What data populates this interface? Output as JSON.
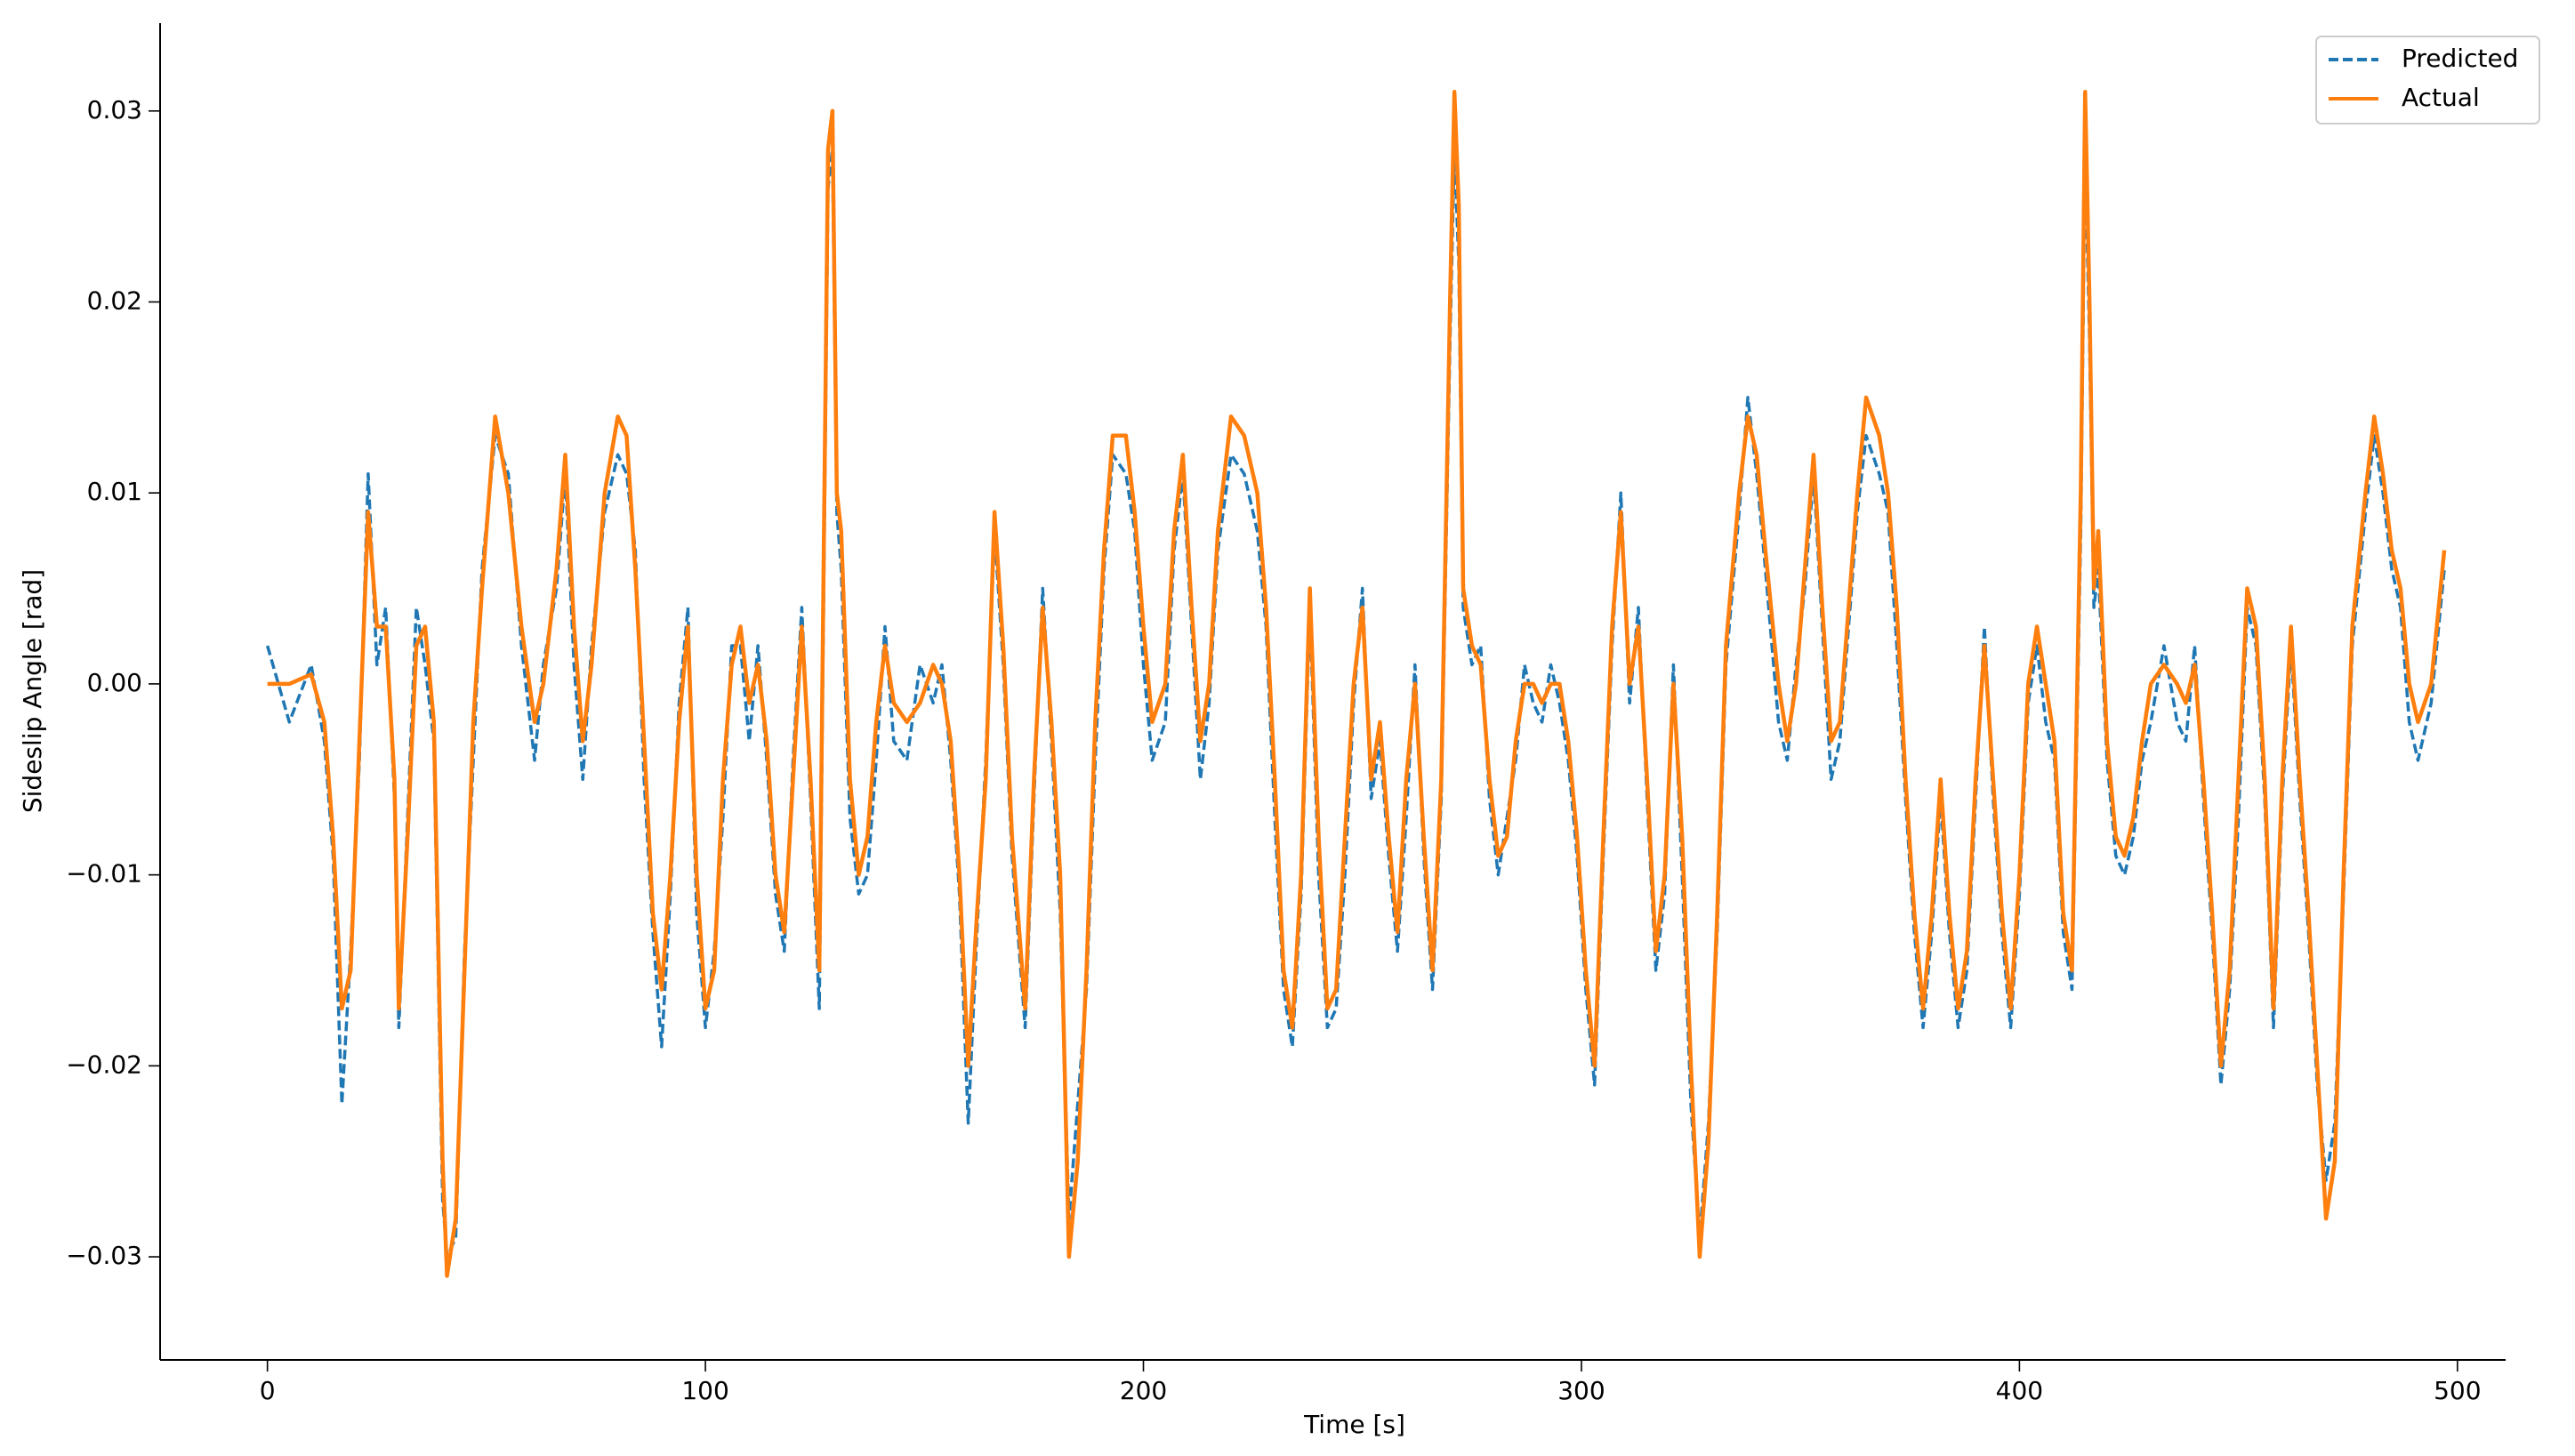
{
  "chart_data": {
    "type": "line",
    "xlabel": "Time [s]",
    "ylabel": "Sideslip Angle [rad]",
    "x": [
      0,
      5,
      10,
      13,
      15,
      17,
      19,
      21,
      23,
      25,
      27,
      29,
      30,
      32,
      34,
      36,
      38,
      40,
      41,
      43,
      45,
      47,
      49,
      52,
      55,
      58,
      61,
      63,
      66,
      68,
      70,
      72,
      74,
      77,
      80,
      82,
      84,
      86,
      88,
      90,
      92,
      94,
      96,
      98,
      100,
      102,
      104,
      106,
      108,
      110,
      112,
      114,
      116,
      118,
      120,
      122,
      124,
      126,
      128,
      129,
      130,
      131,
      133,
      135,
      137,
      139,
      141,
      143,
      146,
      149,
      152,
      154,
      156,
      158,
      160,
      162,
      164,
      166,
      168,
      170,
      173,
      175,
      177,
      179,
      181,
      183,
      185,
      187,
      189,
      191,
      193,
      196,
      198,
      200,
      202,
      205,
      207,
      209,
      211,
      213,
      215,
      217,
      220,
      223,
      226,
      228,
      230,
      232,
      234,
      236,
      238,
      240,
      242,
      244,
      246,
      248,
      250,
      252,
      254,
      256,
      258,
      260,
      262,
      264,
      266,
      268,
      270,
      271,
      272,
      273,
      275,
      277,
      279,
      281,
      283,
      285,
      287,
      289,
      291,
      293,
      295,
      297,
      299,
      301,
      303,
      305,
      307,
      309,
      311,
      313,
      315,
      317,
      319,
      321,
      323,
      325,
      327,
      329,
      331,
      333,
      336,
      338,
      340,
      342,
      345,
      347,
      349,
      351,
      353,
      355,
      357,
      359,
      361,
      363,
      365,
      368,
      370,
      372,
      374,
      376,
      378,
      380,
      382,
      384,
      386,
      388,
      390,
      392,
      394,
      396,
      398,
      400,
      402,
      404,
      406,
      408,
      410,
      412,
      414,
      415,
      416,
      417,
      418,
      420,
      422,
      424,
      426,
      428,
      430,
      433,
      436,
      438,
      440,
      442,
      444,
      446,
      448,
      450,
      452,
      454,
      456,
      458,
      460,
      462,
      464,
      466,
      468,
      470,
      472,
      474,
      476,
      479,
      481,
      483,
      485,
      487,
      489,
      491,
      494,
      497
    ],
    "series": [
      {
        "name": "Predicted",
        "color": "#1f77b4",
        "linestyle": "dashed",
        "values": [
          0.002,
          -0.002,
          0.001,
          -0.003,
          -0.009,
          -0.022,
          -0.014,
          -0.004,
          0.011,
          0.001,
          0.004,
          -0.006,
          -0.018,
          -0.007,
          0.004,
          0.001,
          -0.003,
          -0.027,
          -0.03,
          -0.029,
          -0.014,
          -0.004,
          0.006,
          0.013,
          0.011,
          0.002,
          -0.004,
          0.001,
          0.005,
          0.011,
          0.001,
          -0.005,
          0.002,
          0.009,
          0.012,
          0.011,
          0.007,
          -0.005,
          -0.013,
          -0.019,
          -0.011,
          -0.001,
          0.004,
          -0.012,
          -0.018,
          -0.014,
          -0.007,
          0.002,
          0.002,
          -0.003,
          0.002,
          -0.004,
          -0.011,
          -0.014,
          -0.004,
          0.004,
          -0.006,
          -0.017,
          0.026,
          0.028,
          0.009,
          0.006,
          -0.007,
          -0.011,
          -0.01,
          -0.004,
          0.003,
          -0.003,
          -0.004,
          0.001,
          -0.001,
          0.001,
          -0.004,
          -0.011,
          -0.023,
          -0.013,
          -0.004,
          0.008,
          0.001,
          -0.009,
          -0.018,
          -0.006,
          0.005,
          -0.003,
          -0.012,
          -0.028,
          -0.022,
          -0.016,
          -0.004,
          0.006,
          0.012,
          0.011,
          0.008,
          0.001,
          -0.004,
          -0.002,
          0.007,
          0.011,
          0.003,
          -0.005,
          -0.001,
          0.007,
          0.012,
          0.011,
          0.008,
          0.003,
          -0.007,
          -0.016,
          -0.019,
          -0.011,
          0.004,
          -0.01,
          -0.018,
          -0.017,
          -0.01,
          -0.001,
          0.005,
          -0.006,
          -0.003,
          -0.009,
          -0.014,
          -0.007,
          0.001,
          -0.009,
          -0.016,
          -0.006,
          0.018,
          0.028,
          0.022,
          0.004,
          0.001,
          0.002,
          -0.006,
          -0.01,
          -0.007,
          -0.004,
          0.001,
          -0.001,
          -0.002,
          0.001,
          -0.001,
          -0.004,
          -0.009,
          -0.016,
          -0.021,
          -0.009,
          0.002,
          0.01,
          -0.001,
          0.004,
          -0.006,
          -0.015,
          -0.011,
          0.001,
          -0.01,
          -0.022,
          -0.029,
          -0.023,
          -0.013,
          0.001,
          0.009,
          0.015,
          0.011,
          0.006,
          -0.002,
          -0.004,
          0.001,
          0.005,
          0.011,
          0.003,
          -0.005,
          -0.003,
          0.003,
          0.009,
          0.013,
          0.011,
          0.009,
          0.002,
          -0.006,
          -0.013,
          -0.018,
          -0.013,
          -0.006,
          -0.013,
          -0.018,
          -0.015,
          -0.006,
          0.003,
          -0.006,
          -0.013,
          -0.018,
          -0.011,
          -0.001,
          0.002,
          -0.002,
          -0.004,
          -0.013,
          -0.016,
          0.008,
          0.028,
          0.018,
          0.004,
          0.006,
          -0.004,
          -0.009,
          -0.01,
          -0.008,
          -0.004,
          -0.002,
          0.002,
          -0.002,
          -0.003,
          0.002,
          -0.006,
          -0.013,
          -0.021,
          -0.016,
          -0.007,
          0.004,
          0.002,
          -0.006,
          -0.018,
          -0.006,
          0.002,
          -0.006,
          -0.013,
          -0.021,
          -0.026,
          -0.023,
          -0.011,
          0.002,
          0.009,
          0.013,
          0.01,
          0.006,
          0.004,
          -0.002,
          -0.004,
          -0.001,
          0.006
        ]
      },
      {
        "name": "Actual",
        "color": "#ff7f0e",
        "linestyle": "solid",
        "values": [
          0,
          0,
          0.0005,
          -0.002,
          -0.008,
          -0.017,
          -0.015,
          -0.003,
          0.009,
          0.003,
          0.003,
          -0.005,
          -0.017,
          -0.008,
          0.002,
          0.003,
          -0.002,
          -0.025,
          -0.031,
          -0.028,
          -0.015,
          -0.002,
          0.005,
          0.014,
          0.01,
          0.003,
          -0.002,
          0,
          0.006,
          0.012,
          0.003,
          -0.003,
          0.001,
          0.01,
          0.014,
          0.013,
          0.006,
          -0.003,
          -0.012,
          -0.016,
          -0.01,
          -0.002,
          0.003,
          -0.01,
          -0.017,
          -0.015,
          -0.005,
          0.001,
          0.003,
          -0.001,
          0.001,
          -0.003,
          -0.01,
          -0.013,
          -0.005,
          0.003,
          -0.005,
          -0.015,
          0.028,
          0.03,
          0.01,
          0.008,
          -0.005,
          -0.01,
          -0.008,
          -0.002,
          0.002,
          -0.001,
          -0.002,
          -0.001,
          0.001,
          0,
          -0.003,
          -0.01,
          -0.02,
          -0.012,
          -0.005,
          0.009,
          0.002,
          -0.008,
          -0.017,
          -0.005,
          0.004,
          -0.002,
          -0.01,
          -0.03,
          -0.025,
          -0.015,
          -0.002,
          0.007,
          0.013,
          0.013,
          0.009,
          0.003,
          -0.002,
          0,
          0.008,
          0.012,
          0.004,
          -0.003,
          0,
          0.008,
          0.014,
          0.013,
          0.01,
          0.004,
          -0.005,
          -0.015,
          -0.018,
          -0.01,
          0.005,
          -0.008,
          -0.017,
          -0.016,
          -0.008,
          0,
          0.004,
          -0.005,
          -0.002,
          -0.008,
          -0.013,
          -0.005,
          0,
          -0.008,
          -0.015,
          -0.005,
          0.02,
          0.031,
          0.025,
          0.005,
          0.002,
          0.001,
          -0.005,
          -0.009,
          -0.008,
          -0.003,
          0,
          0,
          -0.001,
          0,
          0,
          -0.003,
          -0.008,
          -0.015,
          -0.02,
          -0.008,
          0.003,
          0.009,
          0,
          0.003,
          -0.005,
          -0.014,
          -0.01,
          0,
          -0.008,
          -0.02,
          -0.03,
          -0.024,
          -0.012,
          0.002,
          0.01,
          0.014,
          0.012,
          0.007,
          0,
          -0.003,
          0,
          0.006,
          0.012,
          0.004,
          -0.003,
          -0.002,
          0.004,
          0.01,
          0.015,
          0.013,
          0.01,
          0.004,
          -0.005,
          -0.012,
          -0.017,
          -0.012,
          -0.005,
          -0.012,
          -0.017,
          -0.014,
          -0.005,
          0.002,
          -0.005,
          -0.012,
          -0.017,
          -0.01,
          0,
          0.003,
          0,
          -0.003,
          -0.012,
          -0.015,
          0.01,
          0.031,
          0.02,
          0.005,
          0.008,
          -0.003,
          -0.008,
          -0.009,
          -0.007,
          -0.003,
          0,
          0.001,
          0,
          -0.001,
          0.001,
          -0.005,
          -0.012,
          -0.02,
          -0.015,
          -0.005,
          0.005,
          0.003,
          -0.005,
          -0.017,
          -0.005,
          0.003,
          -0.005,
          -0.012,
          -0.02,
          -0.028,
          -0.025,
          -0.01,
          0.003,
          0.01,
          0.014,
          0.011,
          0.007,
          0.005,
          0,
          -0.002,
          0,
          0.007
        ]
      }
    ],
    "xlim": [
      -24.5,
      511
    ],
    "ylim": [
      -0.0354,
      0.0346
    ],
    "xticks": [
      0,
      100,
      200,
      300,
      400,
      500
    ],
    "yticks": [
      {
        "value": -0.03,
        "label": "−0.03"
      },
      {
        "value": -0.02,
        "label": "−0.02"
      },
      {
        "value": -0.01,
        "label": "−0.01"
      },
      {
        "value": 0,
        "label": "0.00"
      },
      {
        "value": 0.01,
        "label": "0.01"
      },
      {
        "value": 0.02,
        "label": "0.02"
      },
      {
        "value": 0.03,
        "label": "0.03"
      }
    ],
    "grid": false,
    "legend": "upper right"
  }
}
